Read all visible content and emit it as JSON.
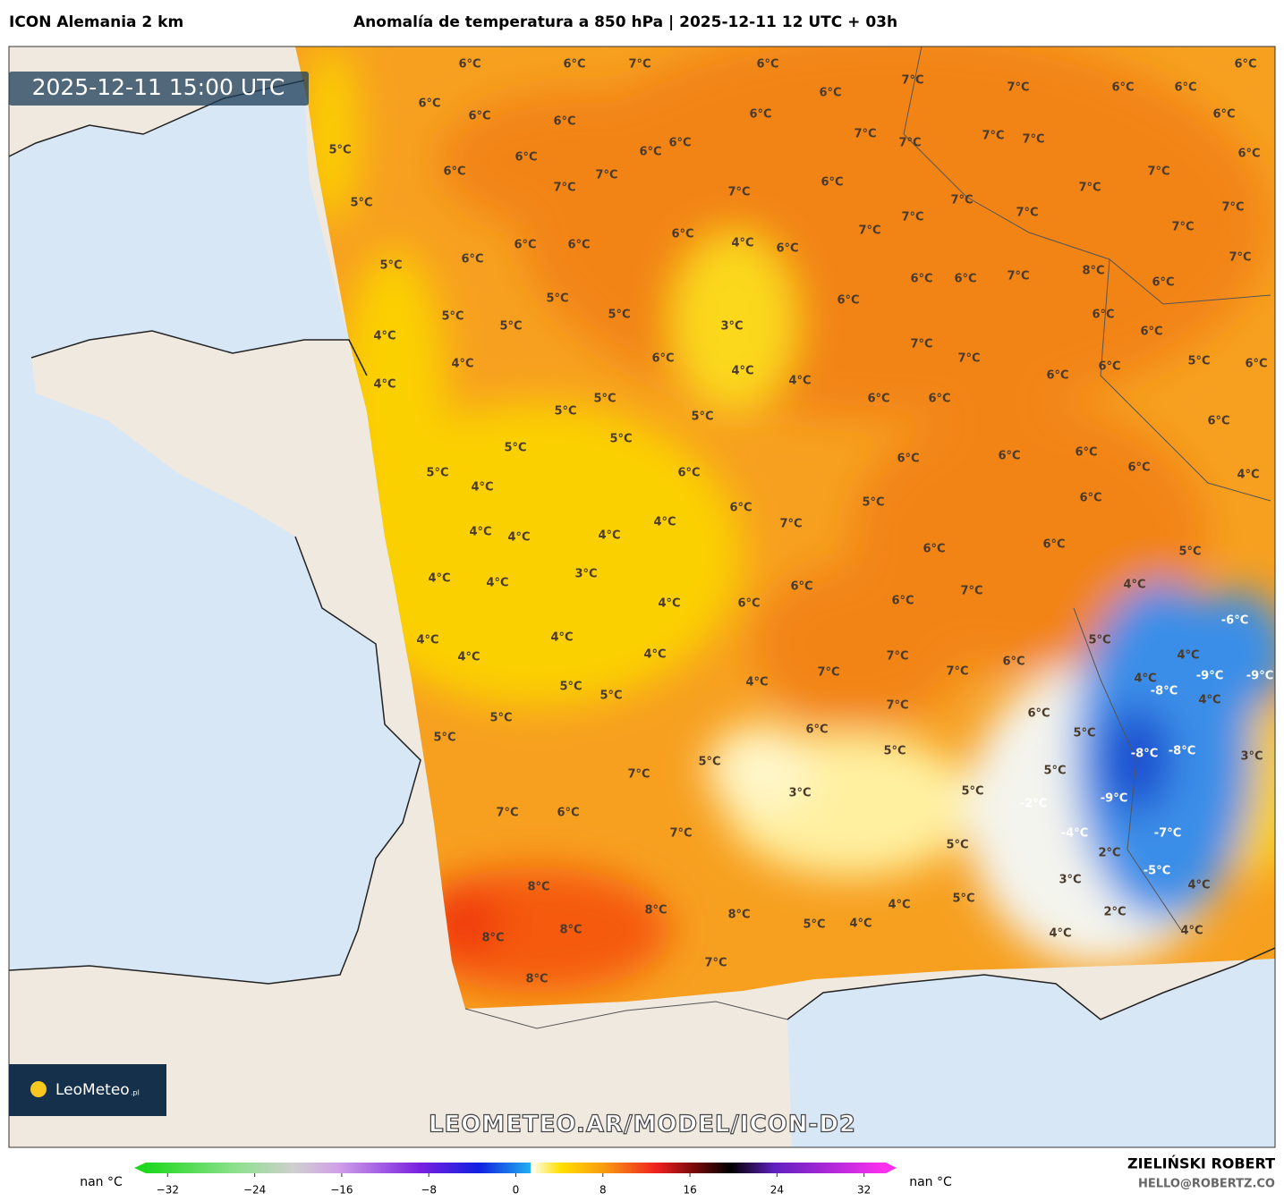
{
  "header": {
    "model": "ICON Alemania 2 km",
    "title": "Anomalía de temperatura a 850 hPa | 2025-12-11 12 UTC + 03h"
  },
  "timestamp": "2025-12-11 15:00 UTC",
  "logo": {
    "name": "LeoMeteo",
    "suffix": ".pl"
  },
  "watermark": "LEOMETEO.AR/MODEL/ICON-D2",
  "map": {
    "labels": [
      "6°C",
      "6°C",
      "7°C",
      "6°C",
      "6°C",
      "7°C",
      "7°C",
      "6°C",
      "6°C",
      "6°C",
      "6°C",
      "6°C",
      "6°C",
      "5°C",
      "6°C",
      "6°C",
      "6°C",
      "6°C",
      "6°C",
      "7°C",
      "7°C",
      "7°C",
      "7°C",
      "6°C",
      "6°C",
      "7°C",
      "7°C",
      "7°C",
      "6°C",
      "7°C",
      "7°C",
      "7°C",
      "7°C",
      "7°C",
      "5°C",
      "6°C",
      "6°C",
      "6°C",
      "4°C",
      "6°C",
      "7°C",
      "7°C",
      "6°C",
      "5°C",
      "7°C",
      "7°C",
      "8°C",
      "6°C",
      "6°C",
      "7°C",
      "6°C",
      "5°C",
      "6°C",
      "5°C",
      "5°C",
      "5°C",
      "3°C",
      "6°C",
      "6°C",
      "4°C",
      "7°C",
      "7°C",
      "4°C",
      "6°C",
      "4°C",
      "6°C",
      "6°C",
      "5°C",
      "6°C",
      "4°C",
      "4°C",
      "5°C",
      "5°C",
      "5°C",
      "6°C",
      "6°C",
      "6°C",
      "5°C",
      "5°C",
      "6°C",
      "6°C",
      "6°C",
      "5°C",
      "6°C",
      "6°C",
      "4°C",
      "4°C",
      "5°C",
      "6°C",
      "6°C",
      "4°C",
      "7°C",
      "4°C",
      "4°C",
      "4°C",
      "6°C",
      "6°C",
      "5°C",
      "3°C",
      "4°C",
      "4°C",
      "6°C",
      "4°C",
      "7°C",
      "4°C",
      "6°C",
      "6°C",
      "-6°C",
      "4°C",
      "4°C",
      "5°C",
      "4°C",
      "4°C",
      "7°C",
      "6°C",
      "4°C",
      "7°C",
      "7°C",
      "-9°C",
      "-9°C",
      "4°C",
      "5°C",
      "5°C",
      "4°C",
      "-8°C",
      "4°C",
      "7°C",
      "6°C",
      "5°C",
      "6°C",
      "5°C",
      "5°C",
      "5°C",
      "-8°C",
      "-8°C",
      "3°C",
      "5°C",
      "5°C",
      "7°C",
      "5°C",
      "3°C",
      "-2°C",
      "-9°C",
      "6°C",
      "7°C",
      "7°C",
      "-4°C",
      "-7°C",
      "5°C",
      "2°C",
      "-5°C",
      "3°C",
      "8°C",
      "4°C",
      "5°C",
      "4°C",
      "8°C",
      "8°C",
      "2°C",
      "8°C",
      "5°C",
      "4°C",
      "8°C",
      "4°C",
      "4°C",
      "7°C",
      "8°C"
    ]
  },
  "colorbar": {
    "range": [
      -34,
      34
    ],
    "ticks": [
      {
        "value": -32,
        "label": "−32"
      },
      {
        "value": -24,
        "label": "−24"
      },
      {
        "value": -16,
        "label": "−16"
      },
      {
        "value": -8,
        "label": "−8"
      },
      0,
      8,
      16,
      24,
      32
    ],
    "low_label": "nan °C",
    "high_label": "nan °C"
  },
  "footer": {
    "author": "ZIELIŃSKI ROBERT",
    "email": "HELLO@ROBERTZ.CO"
  }
}
